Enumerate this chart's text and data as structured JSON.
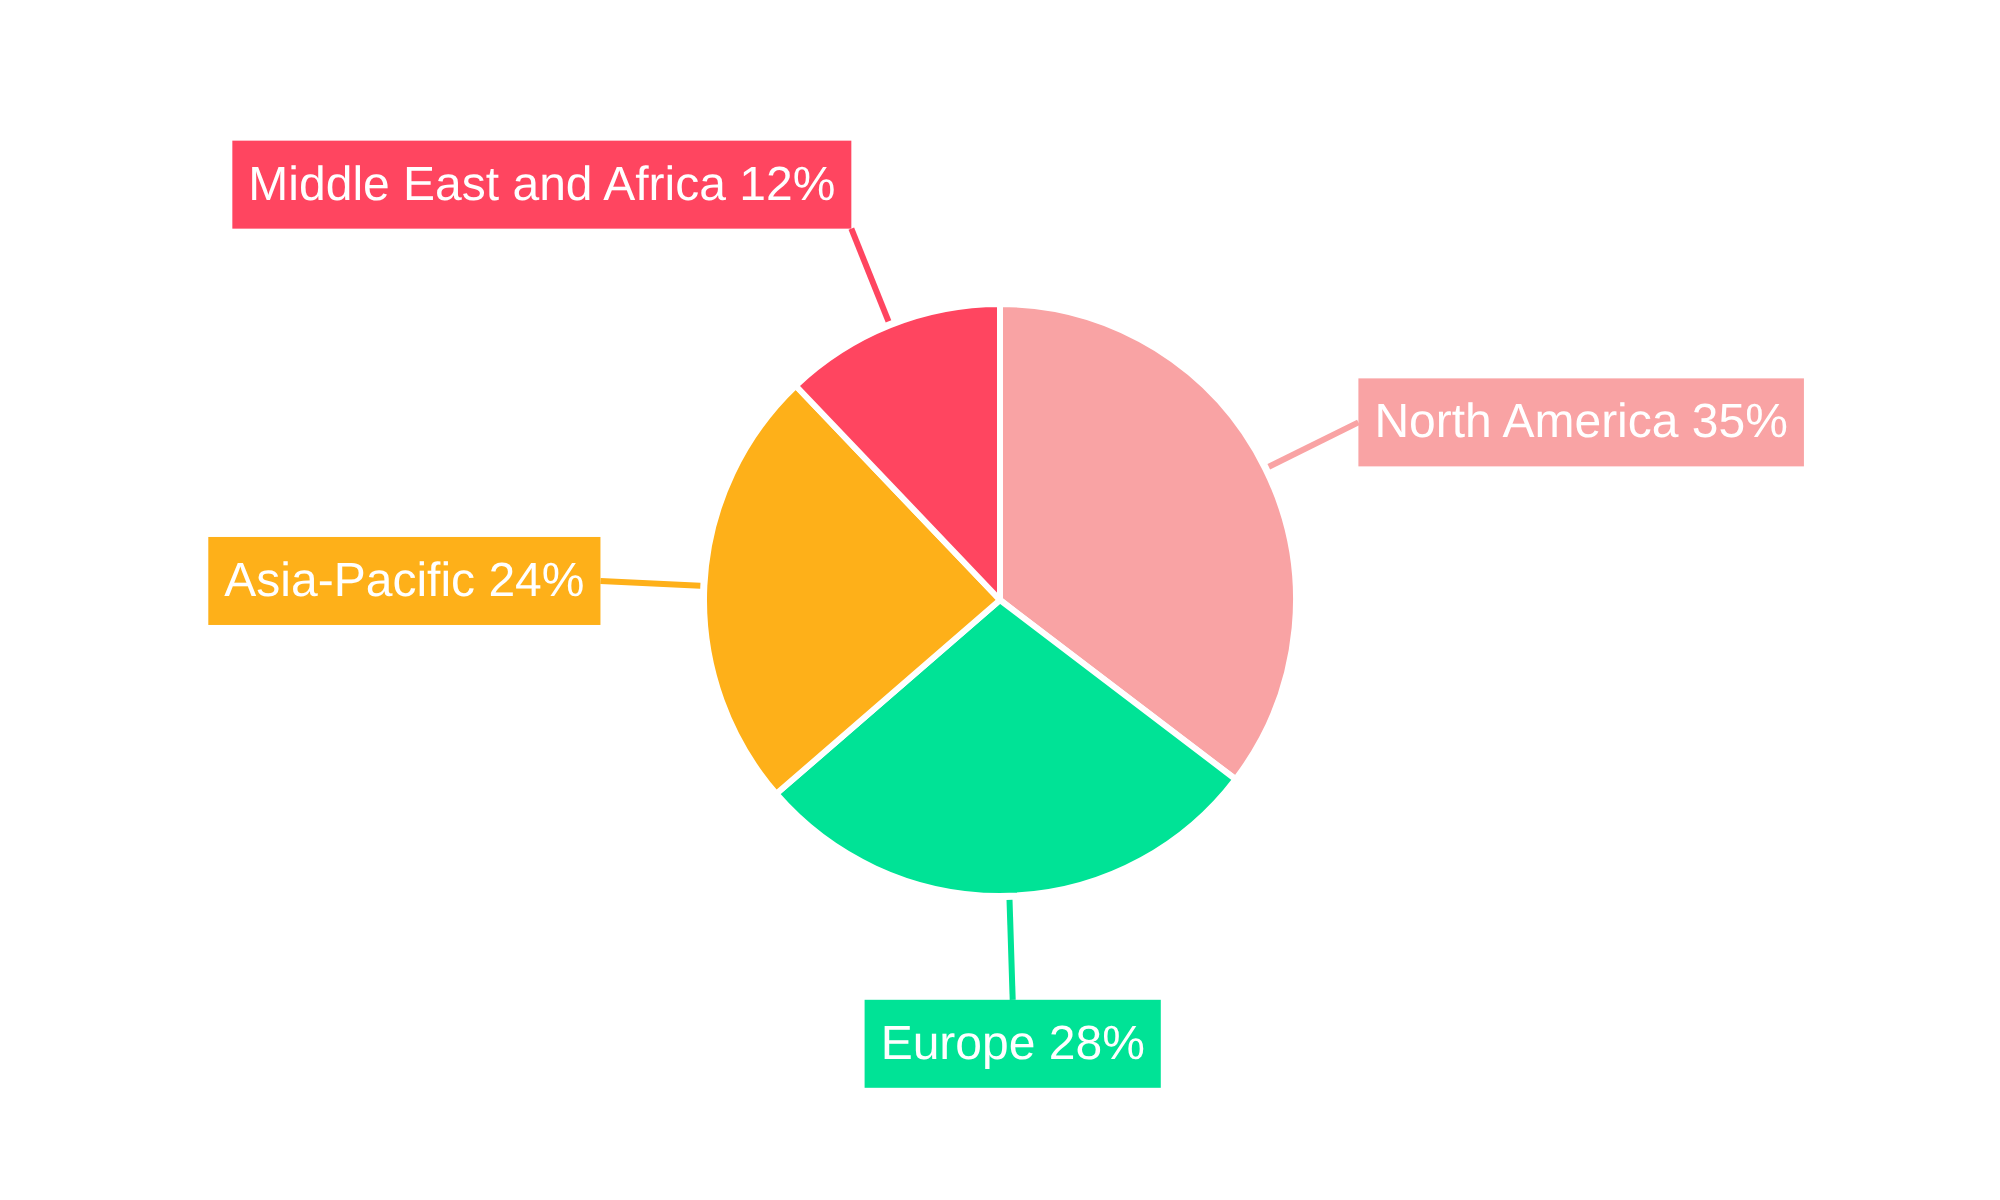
{
  "chart_data": {
    "type": "pie",
    "categories": [
      "North America",
      "Europe",
      "Asia-Pacific",
      "Middle East and Africa"
    ],
    "values": [
      35,
      28,
      24,
      12
    ],
    "value_labels": [
      "35%",
      "28%",
      "24%",
      "12%"
    ],
    "colors": [
      "#f9a3a4",
      "#00e396",
      "#feb019",
      "#ff4560"
    ]
  }
}
